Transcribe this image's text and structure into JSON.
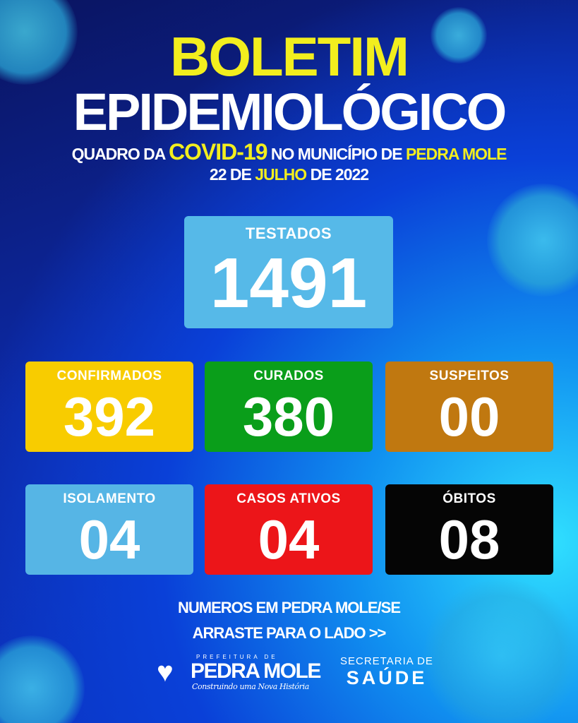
{
  "header": {
    "title_line1": "BOLETIM",
    "title_line2": "EPIDEMIOLÓGICO",
    "subtitle": {
      "part1": "QUADRO DA ",
      "highlight1": "COVID-19",
      "part2": " NO MUNICÍPIO DE ",
      "highlight2": "PEDRA MOLE"
    },
    "date": {
      "part1": "22 DE ",
      "highlight": "JULHO",
      "part2": " DE 2022"
    }
  },
  "stats": {
    "testados": {
      "label": "TESTADOS",
      "value": "1491",
      "color": "#56b9e8"
    },
    "confirmados": {
      "label": "CONFIRMADOS",
      "value": "392",
      "color": "#f8cc00"
    },
    "curados": {
      "label": "CURADOS",
      "value": "380",
      "color": "#0a9e1a"
    },
    "suspeitos": {
      "label": "SUSPEITOS",
      "value": "00",
      "color": "#c07810"
    },
    "isolamento": {
      "label": "ISOLAMENTO",
      "value": "04",
      "color": "#56b5e5"
    },
    "casos_ativos": {
      "label": "CASOS ATIVOS",
      "value": "04",
      "color": "#ec1519"
    },
    "obitos": {
      "label": "ÓBITOS",
      "value": "08",
      "color": "#050505"
    }
  },
  "footer": {
    "line1": "NUMEROS EM PEDRA MOLE/SE",
    "line2": "ARRASTE PARA O LADO >>",
    "logo": {
      "prefix": "PREFEITURA DE",
      "name": "PEDRA MOLE",
      "slogan": "Construindo uma Nova História"
    },
    "secretaria": {
      "line1": "SECRETARIA DE",
      "line2": "SAÚDE"
    }
  }
}
